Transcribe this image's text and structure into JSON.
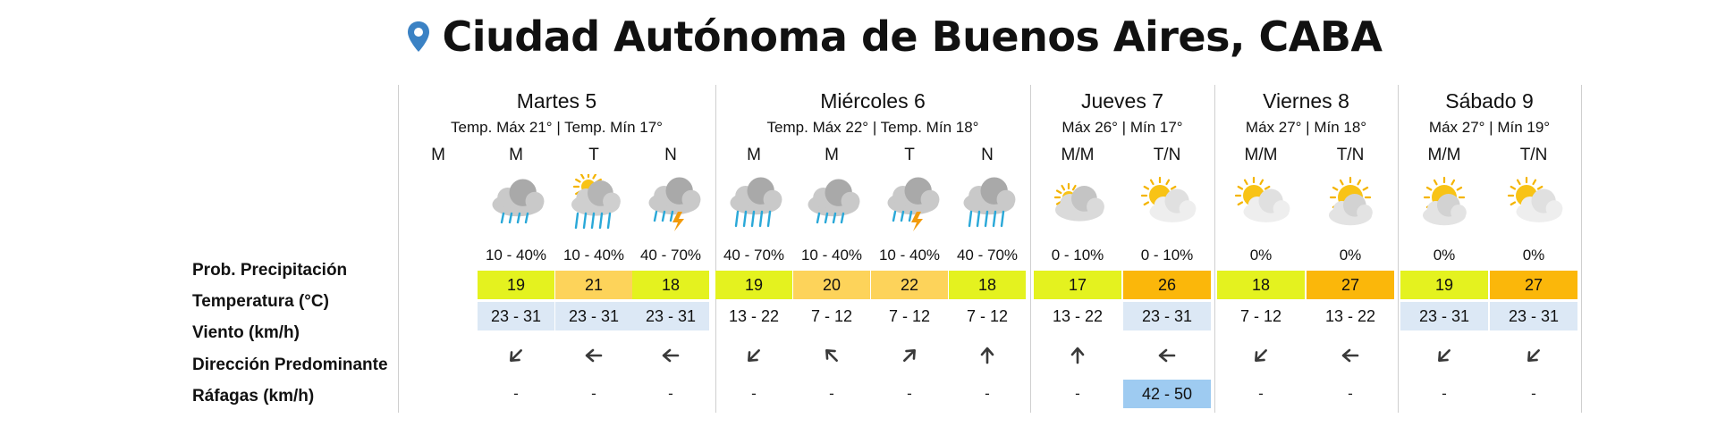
{
  "location": {
    "title": "Ciudad Autónoma de Buenos Aires, CABA",
    "icon": "location-pin-icon",
    "pin_color": "#3b82c4"
  },
  "row_labels": {
    "prob": "Prob. Precipitación",
    "temp": "Temperatura (°C)",
    "wind": "Viento (km/h)",
    "direction": "Dirección Predominante",
    "gusts": "Ráfagas (km/h)"
  },
  "colors": {
    "temp_green": "#e4f21f",
    "temp_orange_light": "#fdd35a",
    "temp_orange": "#fbb70a",
    "wind_blue": "#dce8f5",
    "gust_blue": "#9ecbf1"
  },
  "days": [
    {
      "name": "Martes 5",
      "sub": "Temp. Máx 21° | Temp. Mín 17°",
      "periods": [
        {
          "label": "M",
          "icon": "none",
          "prob": "",
          "temp": "",
          "wind": "",
          "dir": "none",
          "gust": ""
        },
        {
          "label": "M",
          "icon": "cloud-rain-icon",
          "prob": "10 - 40%",
          "temp": "19",
          "temp_color": "temp_green",
          "wind": "23 - 31",
          "wind_bg": true,
          "dir": "arrow-southwest-icon",
          "gust": "-"
        },
        {
          "label": "T",
          "icon": "sun-cloud-heavy-rain-icon",
          "prob": "10 - 40%",
          "temp": "21",
          "temp_color": "temp_orange_light",
          "wind": "23 - 31",
          "wind_bg": true,
          "dir": "arrow-west-icon",
          "gust": "-"
        },
        {
          "label": "N",
          "icon": "cloud-storm-icon",
          "prob": "40 - 70%",
          "temp": "18",
          "temp_color": "temp_green",
          "wind": "23 - 31",
          "wind_bg": true,
          "dir": "arrow-west-icon",
          "gust": "-"
        }
      ]
    },
    {
      "name": "Miércoles 6",
      "sub": "Temp. Máx 22° | Temp. Mín 18°",
      "periods": [
        {
          "label": "M",
          "icon": "cloud-heavy-rain-icon",
          "prob": "40 - 70%",
          "temp": "19",
          "temp_color": "temp_green",
          "wind": "13 - 22",
          "wind_bg": false,
          "dir": "arrow-southwest-icon",
          "gust": "-"
        },
        {
          "label": "M",
          "icon": "cloud-rain-icon",
          "prob": "10 - 40%",
          "temp": "20",
          "temp_color": "temp_orange_light",
          "wind": "7 - 12",
          "wind_bg": false,
          "dir": "arrow-northwest-icon",
          "gust": "-"
        },
        {
          "label": "T",
          "icon": "cloud-storm-icon",
          "prob": "10 - 40%",
          "temp": "22",
          "temp_color": "temp_orange_light",
          "wind": "7 - 12",
          "wind_bg": false,
          "dir": "arrow-northeast-icon",
          "gust": "-"
        },
        {
          "label": "N",
          "icon": "cloud-heavy-rain-icon",
          "prob": "40 - 70%",
          "temp": "18",
          "temp_color": "temp_green",
          "wind": "7 - 12",
          "wind_bg": false,
          "dir": "arrow-north-icon",
          "gust": "-"
        }
      ]
    },
    {
      "name": "Jueves 7",
      "sub": "Máx 26° | Mín 17°",
      "periods": [
        {
          "label": "M/M",
          "icon": "cloud-sun-dim-icon",
          "prob": "0 - 10%",
          "temp": "17",
          "temp_color": "temp_green",
          "wind": "13 - 22",
          "wind_bg": false,
          "dir": "arrow-north-icon",
          "gust": "-"
        },
        {
          "label": "T/N",
          "icon": "sun-cloud-icon",
          "prob": "0 - 10%",
          "temp": "26",
          "temp_color": "temp_orange",
          "wind": "23 - 31",
          "wind_bg": true,
          "dir": "arrow-west-icon",
          "gust": "42 - 50"
        }
      ]
    },
    {
      "name": "Viernes 8",
      "sub": "Máx 27° | Mín 18°",
      "periods": [
        {
          "label": "M/M",
          "icon": "sun-cloud-icon",
          "prob": "0%",
          "temp": "18",
          "temp_color": "temp_green",
          "wind": "7 - 12",
          "wind_bg": false,
          "dir": "arrow-southwest-icon",
          "gust": "-"
        },
        {
          "label": "T/N",
          "icon": "sun-behind-cloud-icon",
          "prob": "0%",
          "temp": "27",
          "temp_color": "temp_orange",
          "wind": "13 - 22",
          "wind_bg": false,
          "dir": "arrow-west-icon",
          "gust": "-"
        }
      ]
    },
    {
      "name": "Sábado 9",
      "sub": "Máx 27° | Mín 19°",
      "periods": [
        {
          "label": "M/M",
          "icon": "sun-behind-cloud-icon",
          "prob": "0%",
          "temp": "19",
          "temp_color": "temp_green",
          "wind": "23 - 31",
          "wind_bg": true,
          "dir": "arrow-southwest-icon",
          "gust": "-"
        },
        {
          "label": "T/N",
          "icon": "sun-cloud-icon",
          "prob": "0%",
          "temp": "27",
          "temp_color": "temp_orange",
          "wind": "23 - 31",
          "wind_bg": true,
          "dir": "arrow-southwest-icon",
          "gust": "-"
        }
      ]
    }
  ]
}
